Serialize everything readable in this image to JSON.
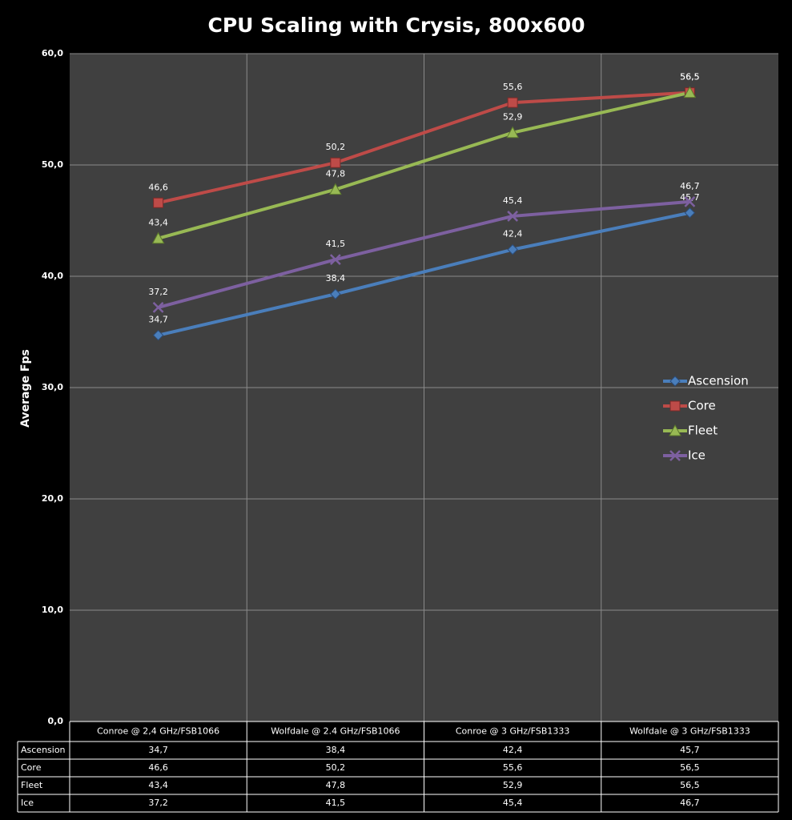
{
  "chart_data": {
    "type": "line",
    "title": "CPU Scaling with Crysis, 800x600",
    "y_label": "Average Fps",
    "categories": [
      "Conroe @ 2,4 GHz/FSB1066",
      "Wolfdale @ 2.4 GHz/FSB1066",
      "Conroe @ 3 GHz/FSB1333",
      "Wolfdale @ 3 GHz/FSB1333"
    ],
    "series": [
      {
        "name": "Ascension",
        "color": "#4a7ebb",
        "marker": "diamond",
        "values": [
          34.7,
          38.4,
          42.4,
          45.7
        ],
        "value_labels": [
          "34,7",
          "38,4",
          "42,4",
          "45,7"
        ]
      },
      {
        "name": "Core",
        "color": "#be4b48",
        "marker": "square",
        "values": [
          46.6,
          50.2,
          55.6,
          56.5
        ],
        "value_labels": [
          "46,6",
          "50,2",
          "55,6",
          "56,5"
        ]
      },
      {
        "name": "Fleet",
        "color": "#98b954",
        "marker": "triangle",
        "values": [
          43.4,
          47.8,
          52.9,
          56.5
        ],
        "value_labels": [
          "43,4",
          "47,8",
          "52,9",
          "56,5"
        ]
      },
      {
        "name": "Ice",
        "color": "#7d60a0",
        "marker": "x",
        "values": [
          37.2,
          41.5,
          45.4,
          46.7
        ],
        "value_labels": [
          "37,2",
          "41,5",
          "45,4",
          "46,7"
        ]
      }
    ],
    "ylim": [
      0,
      60
    ],
    "yticks": [
      {
        "value": 0,
        "label": "0,0"
      },
      {
        "value": 10,
        "label": "10,0"
      },
      {
        "value": 20,
        "label": "20,0"
      },
      {
        "value": 30,
        "label": "30,0"
      },
      {
        "value": 40,
        "label": "40,0"
      },
      {
        "value": 50,
        "label": "50,0"
      },
      {
        "value": 60,
        "label": "60,0"
      }
    ],
    "grid": true,
    "legend": "right"
  }
}
